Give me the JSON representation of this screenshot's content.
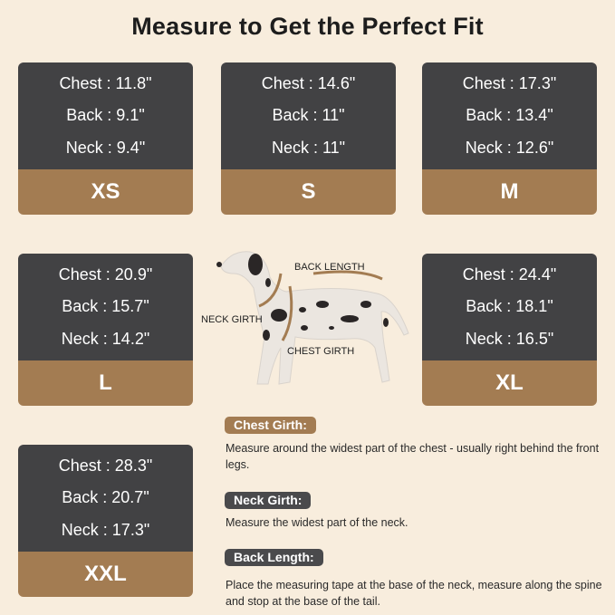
{
  "title": "Measure to Get the Perfect Fit",
  "sizes": [
    {
      "size": "XS",
      "chest": "Chest : 11.8\"",
      "back": "Back : 9.1\"",
      "neck": "Neck : 9.4\""
    },
    {
      "size": "S",
      "chest": "Chest : 14.6\"",
      "back": "Back : 11\"",
      "neck": "Neck : 11\""
    },
    {
      "size": "M",
      "chest": "Chest : 17.3\"",
      "back": "Back : 13.4\"",
      "neck": "Neck : 12.6\""
    },
    {
      "size": "L",
      "chest": "Chest : 20.9\"",
      "back": "Back : 15.7\"",
      "neck": "Neck : 14.2\""
    },
    {
      "size": "XL",
      "chest": "Chest : 24.4\"",
      "back": "Back : 18.1\"",
      "neck": "Neck : 16.5\""
    },
    {
      "size": "XXL",
      "chest": "Chest : 28.3\"",
      "back": "Back : 20.7\"",
      "neck": "Neck : 17.3\""
    }
  ],
  "diagram": {
    "back_length": "BACK LENGTH",
    "neck_girth": "NECK GIRTH",
    "chest_girth": "CHEST GIRTH"
  },
  "instructions": [
    {
      "label": "Chest Girth:",
      "text": "Measure around the widest part of the chest - usually right behind the front legs.",
      "color": "#a37c52"
    },
    {
      "label": "Neck Girth:",
      "text": "Measure the widest part of the neck.",
      "color": "#4a4a4c"
    },
    {
      "label": "Back Length:",
      "text": "Place the measuring tape at the base of the neck, measure along the spine and stop at the base of the tail.",
      "color": "#4a4a4c"
    }
  ],
  "colors": {
    "background": "#f8eddd",
    "card_dark": "#424244",
    "card_brown": "#a37c52"
  }
}
